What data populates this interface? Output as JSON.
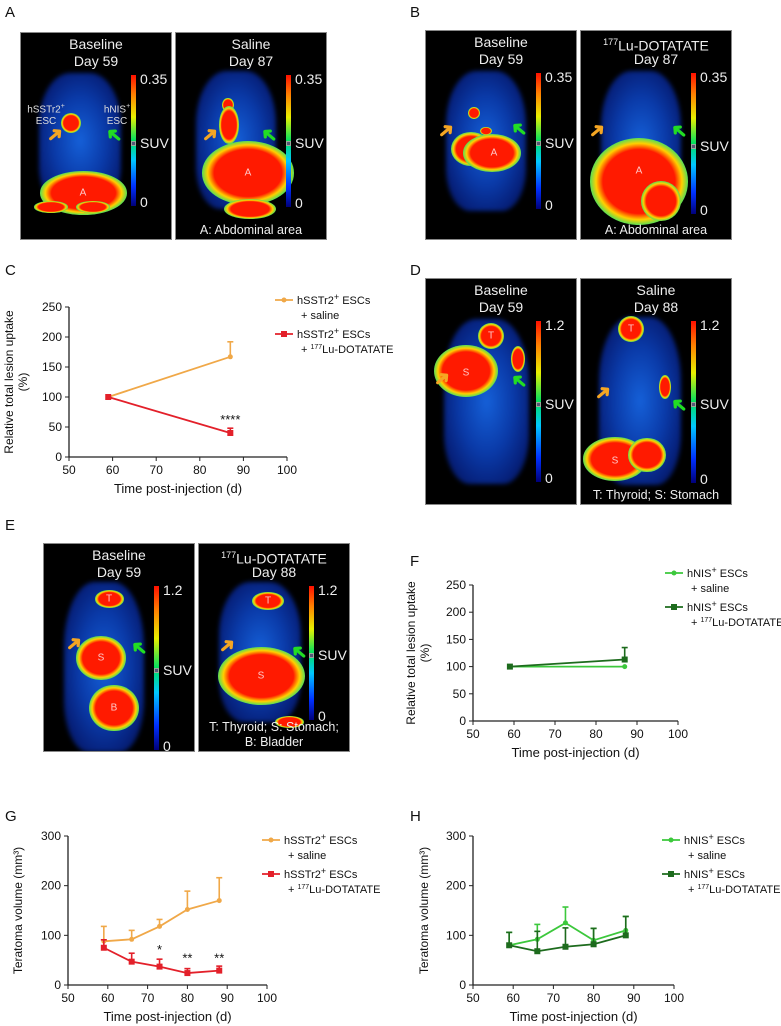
{
  "panel_labels": [
    "A",
    "B",
    "C",
    "D",
    "E",
    "F",
    "G",
    "H"
  ],
  "imaging": [
    {
      "id": "A-baseline",
      "title_sup": "",
      "title1": "Baseline",
      "title2": "Day 59",
      "scale_max": "0.35",
      "scale_min": "0",
      "scale_unit": "SUV",
      "caption": [],
      "organs": [
        "A"
      ],
      "arrow_labels": [
        {
          "text": "hSSTr2",
          "sup": "+",
          "line2": "ESC"
        },
        {
          "text": "hNIS",
          "sup": "+",
          "line2": "ESC"
        }
      ]
    },
    {
      "id": "A-saline",
      "title_sup": "",
      "title1": "Saline",
      "title2": "Day 87",
      "scale_max": "0.35",
      "scale_min": "0",
      "scale_unit": "SUV",
      "caption": [
        "A: Abdominal area"
      ],
      "organs": [
        "A"
      ],
      "arrow_labels": []
    },
    {
      "id": "B-baseline",
      "title_sup": "",
      "title1": "Baseline",
      "title2": "Day 59",
      "scale_max": "0.35",
      "scale_min": "0",
      "scale_unit": "SUV",
      "caption": [],
      "organs": [
        "A"
      ],
      "arrow_labels": []
    },
    {
      "id": "B-lu",
      "title_sup": "177",
      "title1": "Lu-DOTATATE",
      "title2": "Day 87",
      "scale_max": "0.35",
      "scale_min": "0",
      "scale_unit": "SUV",
      "caption": [
        "A: Abdominal area"
      ],
      "organs": [
        "A"
      ],
      "arrow_labels": []
    },
    {
      "id": "D-baseline",
      "title_sup": "",
      "title1": "Baseline",
      "title2": "Day 59",
      "scale_max": "1.2",
      "scale_min": "0",
      "scale_unit": "SUV",
      "caption": [],
      "organs": [
        "T",
        "S"
      ],
      "arrow_labels": []
    },
    {
      "id": "D-saline",
      "title_sup": "",
      "title1": "Saline",
      "title2": "Day 88",
      "scale_max": "1.2",
      "scale_min": "0",
      "scale_unit": "SUV",
      "caption": [
        "T: Thyroid; S: Stomach"
      ],
      "organs": [
        "T",
        "S"
      ],
      "arrow_labels": []
    },
    {
      "id": "E-baseline",
      "title_sup": "",
      "title1": "Baseline",
      "title2": "Day 59",
      "scale_max": "1.2",
      "scale_min": "0",
      "scale_unit": "SUV",
      "caption": [],
      "organs": [
        "T",
        "S",
        "B"
      ],
      "arrow_labels": []
    },
    {
      "id": "E-lu",
      "title_sup": "177",
      "title1": "Lu-DOTATATE",
      "title2": "Day 88",
      "scale_max": "1.2",
      "scale_min": "0",
      "scale_unit": "SUV",
      "caption": [
        "T: Thyroid; S: Stomach;",
        "B: Bladder"
      ],
      "organs": [
        "T",
        "S"
      ],
      "arrow_labels": []
    }
  ],
  "colors": {
    "saline_sstr2": "#f0a848",
    "lu_sstr2": "#e3202a",
    "saline_nis": "#3cc83c",
    "lu_nis": "#1d6b1d",
    "arrow_sstr2": "#f5a623",
    "arrow_nis": "#22dd22"
  },
  "chart_data": [
    {
      "panel": "C",
      "type": "line",
      "xlabel": "Time post-injection (d)",
      "ylabel": [
        "Relative total lesion uptake",
        "(%)"
      ],
      "xlim": [
        50,
        100
      ],
      "ylim": [
        0,
        250
      ],
      "xticks": [
        50,
        60,
        70,
        80,
        90,
        100
      ],
      "yticks": [
        0,
        50,
        100,
        150,
        200,
        250
      ],
      "legend": "top-right",
      "series": [
        {
          "key": "saline_sstr2",
          "legend1": [
            "hSSTr2",
            "+",
            " ESCs"
          ],
          "legend2": [
            "+ saline",
            "",
            ""
          ],
          "marker": "diamond",
          "x": [
            59,
            87
          ],
          "y": [
            100,
            167
          ],
          "err": [
            0,
            25
          ]
        },
        {
          "key": "lu_sstr2",
          "legend1": [
            "hSSTr2",
            "+",
            " ESCs"
          ],
          "legend2": [
            "+ ",
            "177",
            "Lu-DOTATATE"
          ],
          "marker": "square",
          "x": [
            59,
            87
          ],
          "y": [
            100,
            40
          ],
          "err": [
            0,
            8
          ]
        }
      ],
      "annotations": [
        {
          "text": "****",
          "x": 87,
          "y": 55
        }
      ]
    },
    {
      "panel": "F",
      "type": "line",
      "xlabel": "Time post-injection (d)",
      "ylabel": [
        "Relative total lesion uptake",
        "(%)"
      ],
      "xlim": [
        50,
        100
      ],
      "ylim": [
        0,
        250
      ],
      "xticks": [
        50,
        60,
        70,
        80,
        90,
        100
      ],
      "yticks": [
        0,
        50,
        100,
        150,
        200,
        250
      ],
      "legend": "top-right",
      "series": [
        {
          "key": "saline_nis",
          "legend1": [
            "hNIS",
            "+",
            " ESCs"
          ],
          "legend2": [
            "+ saline",
            "",
            ""
          ],
          "marker": "diamond",
          "x": [
            59,
            87
          ],
          "y": [
            100,
            100
          ],
          "err": [
            0,
            0
          ]
        },
        {
          "key": "lu_nis",
          "legend1": [
            "hNIS",
            "+",
            " ESCs"
          ],
          "legend2": [
            "+ ",
            "177",
            "Lu-DOTATATE"
          ],
          "marker": "square",
          "x": [
            59,
            87
          ],
          "y": [
            100,
            113
          ],
          "err": [
            0,
            22
          ]
        }
      ],
      "annotations": []
    },
    {
      "panel": "G",
      "type": "line",
      "xlabel": "Time post-injection (d)",
      "ylabel": [
        "Teratoma volume (mm³)"
      ],
      "xlim": [
        50,
        100
      ],
      "ylim": [
        0,
        300
      ],
      "xticks": [
        50,
        60,
        70,
        80,
        90,
        100
      ],
      "yticks": [
        0,
        100,
        200,
        300
      ],
      "legend": "top-right",
      "series": [
        {
          "key": "saline_sstr2",
          "legend1": [
            "hSSTr2",
            "+",
            " ESCs"
          ],
          "legend2": [
            "+ saline",
            "",
            ""
          ],
          "marker": "diamond",
          "x": [
            59,
            66,
            73,
            80,
            88
          ],
          "y": [
            88,
            92,
            118,
            152,
            170
          ],
          "err": [
            30,
            18,
            14,
            37,
            46
          ]
        },
        {
          "key": "lu_sstr2",
          "legend1": [
            "hSSTr2",
            "+",
            " ESCs"
          ],
          "legend2": [
            "+ ",
            "177",
            "Lu-DOTATATE"
          ],
          "marker": "square",
          "x": [
            59,
            66,
            73,
            80,
            88
          ],
          "y": [
            75,
            47,
            37,
            24,
            29
          ],
          "err": [
            16,
            17,
            15,
            9,
            9
          ]
        }
      ],
      "annotations": [
        {
          "text": "*",
          "x": 73,
          "y": 62
        },
        {
          "text": "**",
          "x": 80,
          "y": 45
        },
        {
          "text": "**",
          "x": 88,
          "y": 45
        }
      ]
    },
    {
      "panel": "H",
      "type": "line",
      "xlabel": "Time post-injection (d)",
      "ylabel": [
        "Teratoma volume (mm³)"
      ],
      "xlim": [
        50,
        100
      ],
      "ylim": [
        0,
        300
      ],
      "xticks": [
        50,
        60,
        70,
        80,
        90,
        100
      ],
      "yticks": [
        0,
        100,
        200,
        300
      ],
      "legend": "top-right",
      "series": [
        {
          "key": "saline_nis",
          "legend1": [
            "hNIS",
            "+",
            " ESCs"
          ],
          "legend2": [
            "+ saline",
            "",
            ""
          ],
          "marker": "diamond",
          "x": [
            59,
            66,
            73,
            80,
            88
          ],
          "y": [
            80,
            92,
            125,
            90,
            110
          ],
          "err": [
            26,
            30,
            32,
            24,
            28
          ]
        },
        {
          "key": "lu_nis",
          "legend1": [
            "hNIS",
            "+",
            " ESCs"
          ],
          "legend2": [
            "+ ",
            "177",
            "Lu-DOTATATE"
          ],
          "marker": "square",
          "x": [
            59,
            66,
            73,
            80,
            88
          ],
          "y": [
            80,
            68,
            77,
            82,
            100
          ],
          "err": [
            26,
            40,
            38,
            32,
            38
          ]
        }
      ],
      "annotations": []
    }
  ]
}
